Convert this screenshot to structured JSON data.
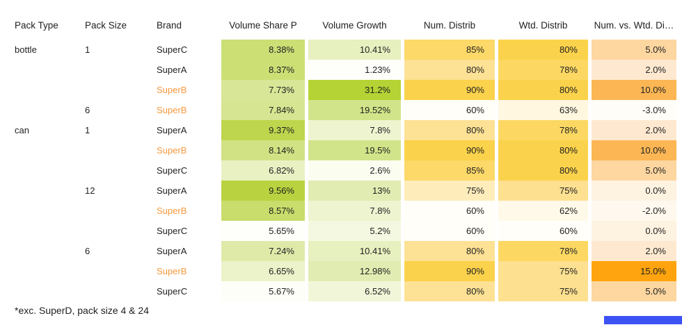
{
  "chart_data": {
    "type": "table",
    "title": "",
    "columns": [
      "Pack Type",
      "Pack Size",
      "Brand",
      "Volume Share P",
      "Volume Growth",
      "Num. Distrib",
      "Wtd. Distrib",
      "Num. vs. Wtd. Di…"
    ],
    "footnote": "*exc. SuperD, pack size 4 & 24",
    "brand_highlight_color": "#f8993e",
    "bottom_bar_color": "#3d52f3",
    "color_scales": {
      "volume_share": {
        "min": "5.65%",
        "max": "9.56%",
        "min_color": "#ffffff",
        "max_color": "#b5d334"
      },
      "volume_growth": {
        "min": "1.23%",
        "max": "31.2%",
        "min_color": "#ffffff",
        "max_color": "#b5d334"
      },
      "num_distrib": {
        "min": "60%",
        "max": "90%",
        "min_color": "#ffffff",
        "max_color": "#fbd24b"
      },
      "wtd_distrib": {
        "min": "60%",
        "max": "80%",
        "min_color": "#ffffff",
        "max_color": "#fbd24b"
      },
      "num_vs_wtd": {
        "min": "-3.0%",
        "max": "15.0%",
        "min_color": "#ffffff",
        "max_color": "#ffa40e"
      }
    },
    "rows": [
      {
        "pack_type": "bottle",
        "pack_size": "1",
        "brand": "SuperC",
        "brand_highlighted": false,
        "cells": [
          {
            "v": "8.38%",
            "c": "#cbdf75"
          },
          {
            "v": "10.41%",
            "c": "#e7f0bf"
          },
          {
            "v": "85%",
            "c": "#fcd968"
          },
          {
            "v": "80%",
            "c": "#fbd24b"
          },
          {
            "v": "5.0%",
            "c": "#fdd6a0"
          }
        ]
      },
      {
        "pack_type": "",
        "pack_size": "",
        "brand": "SuperA",
        "brand_highlighted": false,
        "cells": [
          {
            "v": "8.37%",
            "c": "#cbdf75"
          },
          {
            "v": "1.23%",
            "c": "#fefffb"
          },
          {
            "v": "80%",
            "c": "#fde194"
          },
          {
            "v": "78%",
            "c": "#fcd863"
          },
          {
            "v": "2.0%",
            "c": "#fee9d0"
          }
        ]
      },
      {
        "pack_type": "",
        "pack_size": "",
        "brand": "SuperB",
        "brand_highlighted": true,
        "cells": [
          {
            "v": "7.73%",
            "c": "#d8e697"
          },
          {
            "v": "31.2%",
            "c": "#b5d334"
          },
          {
            "v": "90%",
            "c": "#fbd24b"
          },
          {
            "v": "80%",
            "c": "#fbd24b"
          },
          {
            "v": "10.0%",
            "c": "#fcb654"
          }
        ]
      },
      {
        "pack_type": "",
        "pack_size": "6",
        "brand": "SuperB",
        "brand_highlighted": true,
        "cells": [
          {
            "v": "7.84%",
            "c": "#d6e591"
          },
          {
            "v": "19.52%",
            "c": "#d2e489"
          },
          {
            "v": "60%",
            "c": "#fffef8"
          },
          {
            "v": "63%",
            "c": "#fff7e0"
          },
          {
            "v": "-3.0%",
            "c": "#fffdf8"
          }
        ]
      },
      {
        "pack_type": "can",
        "pack_size": "1",
        "brand": "SuperA",
        "brand_highlighted": false,
        "cells": [
          {
            "v": "9.37%",
            "c": "#bdd64d"
          },
          {
            "v": "7.8%",
            "c": "#eef4d0"
          },
          {
            "v": "80%",
            "c": "#fde194"
          },
          {
            "v": "78%",
            "c": "#fcd863"
          },
          {
            "v": "2.0%",
            "c": "#fee9d0"
          }
        ]
      },
      {
        "pack_type": "",
        "pack_size": "",
        "brand": "SuperB",
        "brand_highlighted": true,
        "cells": [
          {
            "v": "8.14%",
            "c": "#d0e283"
          },
          {
            "v": "19.5%",
            "c": "#d2e489"
          },
          {
            "v": "90%",
            "c": "#fbd24b"
          },
          {
            "v": "80%",
            "c": "#fbd24b"
          },
          {
            "v": "10.0%",
            "c": "#fcb654"
          }
        ]
      },
      {
        "pack_type": "",
        "pack_size": "",
        "brand": "SuperC",
        "brand_highlighted": false,
        "cells": [
          {
            "v": "6.82%",
            "c": "#e9f1c3"
          },
          {
            "v": "2.6%",
            "c": "#fcfdf1"
          },
          {
            "v": "85%",
            "c": "#fcd968"
          },
          {
            "v": "80%",
            "c": "#fbd24b"
          },
          {
            "v": "5.0%",
            "c": "#fdd6a0"
          }
        ]
      },
      {
        "pack_type": "",
        "pack_size": "12",
        "brand": "SuperA",
        "brand_highlighted": false,
        "cells": [
          {
            "v": "9.56%",
            "c": "#b9d340"
          },
          {
            "v": "13%",
            "c": "#e1ecb2"
          },
          {
            "v": "75%",
            "c": "#feedbb"
          },
          {
            "v": "75%",
            "c": "#fde090"
          },
          {
            "v": "0.0%",
            "c": "#fef2e1"
          }
        ]
      },
      {
        "pack_type": "",
        "pack_size": "",
        "brand": "SuperB",
        "brand_highlighted": true,
        "cells": [
          {
            "v": "8.57%",
            "c": "#c8dd6c"
          },
          {
            "v": "7.8%",
            "c": "#eef4d0"
          },
          {
            "v": "60%",
            "c": "#fffef8"
          },
          {
            "v": "62%",
            "c": "#fff9e9"
          },
          {
            "v": "-2.0%",
            "c": "#fff8ee"
          }
        ]
      },
      {
        "pack_type": "",
        "pack_size": "",
        "brand": "SuperC",
        "brand_highlighted": false,
        "cells": [
          {
            "v": "5.65%",
            "c": "#fefefb"
          },
          {
            "v": "5.2%",
            "c": "#f4f8e0"
          },
          {
            "v": "60%",
            "c": "#fffef8"
          },
          {
            "v": "60%",
            "c": "#fffef8"
          },
          {
            "v": "0.0%",
            "c": "#fef2e1"
          }
        ]
      },
      {
        "pack_type": "",
        "pack_size": "6",
        "brand": "SuperA",
        "brand_highlighted": false,
        "cells": [
          {
            "v": "7.24%",
            "c": "#dfeaa9"
          },
          {
            "v": "10.41%",
            "c": "#e7f0bf"
          },
          {
            "v": "80%",
            "c": "#fde194"
          },
          {
            "v": "78%",
            "c": "#fcd863"
          },
          {
            "v": "2.0%",
            "c": "#fee9d0"
          }
        ]
      },
      {
        "pack_type": "",
        "pack_size": "",
        "brand": "SuperB",
        "brand_highlighted": true,
        "cells": [
          {
            "v": "6.65%",
            "c": "#ecf2c9"
          },
          {
            "v": "12.98%",
            "c": "#e1ecb2"
          },
          {
            "v": "90%",
            "c": "#fbd24b"
          },
          {
            "v": "75%",
            "c": "#fde090"
          },
          {
            "v": "15.0%",
            "c": "#ffa40e"
          }
        ]
      },
      {
        "pack_type": "",
        "pack_size": "",
        "brand": "SuperC",
        "brand_highlighted": false,
        "cells": [
          {
            "v": "5.67%",
            "c": "#fdfef7"
          },
          {
            "v": "6.52%",
            "c": "#f1f6d8"
          },
          {
            "v": "80%",
            "c": "#fde194"
          },
          {
            "v": "75%",
            "c": "#fde090"
          },
          {
            "v": "5.0%",
            "c": "#fdd6a0"
          }
        ]
      }
    ]
  }
}
